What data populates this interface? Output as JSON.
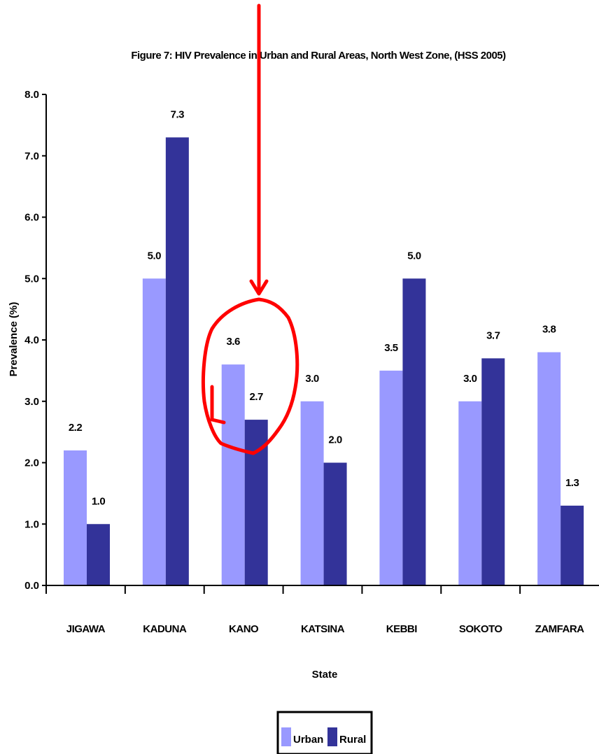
{
  "chart_data": {
    "type": "bar",
    "title": "Figure 7: HIV Prevalence in Urban and Rural Areas, North West Zone, (HSS 2005)",
    "xlabel": "State",
    "ylabel": "Prevalence (%)",
    "ylim": [
      0,
      8
    ],
    "yticks": [
      "0.0",
      "1.0",
      "2.0",
      "3.0",
      "4.0",
      "5.0",
      "6.0",
      "7.0",
      "8.0"
    ],
    "categories": [
      "JIGAWA",
      "KADUNA",
      "KANO",
      "KATSINA",
      "KEBBI",
      "SOKOTO",
      "ZAMFARA"
    ],
    "series": [
      {
        "name": "Urban",
        "color": "#9999ff",
        "values": [
          2.2,
          5.0,
          3.6,
          3.0,
          3.5,
          3.0,
          3.8
        ],
        "labels": [
          "2.2",
          "5.0",
          "3.6",
          "3.0",
          "3.5",
          "3.0",
          "3.8"
        ]
      },
      {
        "name": "Rural",
        "color": "#333399",
        "values": [
          1.0,
          7.3,
          2.7,
          2.0,
          5.0,
          3.7,
          1.3
        ],
        "labels": [
          "1.0",
          "7.3",
          "2.7",
          "2.0",
          "5.0",
          "3.7",
          "1.3"
        ]
      }
    ],
    "grid": false,
    "legend": "bottom",
    "annotation": {
      "type": "hand-drawn arrow and circle",
      "target": "KANO",
      "color": "#ff0000"
    }
  }
}
